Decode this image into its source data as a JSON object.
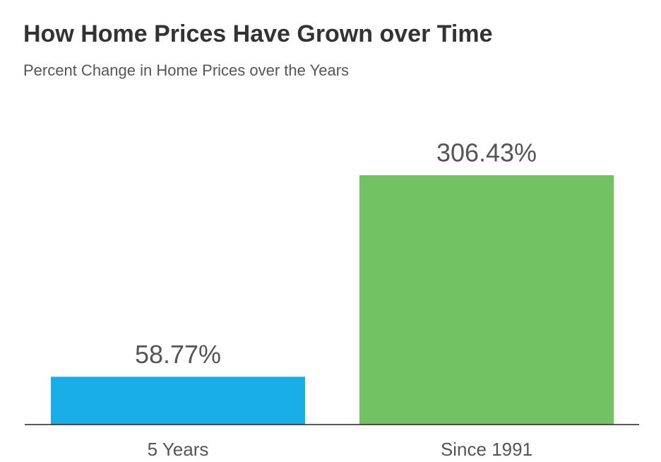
{
  "chart_data": {
    "type": "bar",
    "title": "How Home Prices Have Grown over Time",
    "subtitle": "Percent Change in Home Prices over the Years",
    "categories": [
      "5 Years",
      "Since 1991"
    ],
    "values": [
      58.77,
      306.43
    ],
    "value_labels": [
      "58.77%",
      "306.43%"
    ],
    "colors": [
      "#1aaee8",
      "#72c264"
    ]
  }
}
